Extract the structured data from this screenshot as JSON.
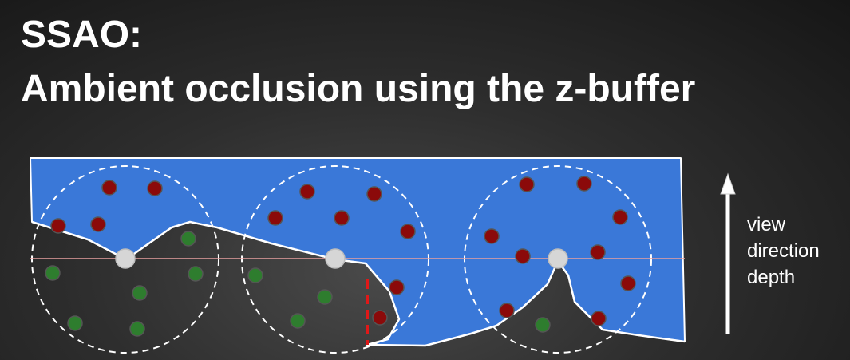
{
  "title": {
    "line1": "SSAO:",
    "line2": "Ambient occlusion using the z-buffer"
  },
  "labels": [
    "view",
    "direction",
    "depth"
  ],
  "colors": {
    "background": "#2b2b2b",
    "visible_region": "#3a78d8",
    "occluded_region": "#2a2a2a",
    "occluded_sample": "#8b0a0a",
    "visible_sample": "#2e7d2e",
    "center_point": "#d6d6d6",
    "depth_line": "#e8a0a0",
    "depth_discontinuity": "#e01818",
    "outline": "#ffffff"
  },
  "icons": [
    "up-arrow-icon"
  ]
}
